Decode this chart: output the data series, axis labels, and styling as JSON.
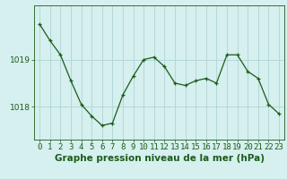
{
  "x": [
    0,
    1,
    2,
    3,
    4,
    5,
    6,
    7,
    8,
    9,
    10,
    11,
    12,
    13,
    14,
    15,
    16,
    17,
    18,
    19,
    20,
    21,
    22,
    23
  ],
  "y": [
    1019.75,
    1019.4,
    1019.1,
    1018.55,
    1018.05,
    1017.8,
    1017.6,
    1017.65,
    1018.25,
    1018.65,
    1019.0,
    1019.05,
    1018.85,
    1018.5,
    1018.45,
    1018.55,
    1018.6,
    1018.5,
    1019.1,
    1019.1,
    1018.75,
    1018.6,
    1018.05,
    1017.85
  ],
  "line_color": "#1a5c1a",
  "marker": "+",
  "bg_color": "#d6efef",
  "grid_color": "#b0d4d4",
  "axis_color": "#1a5c1a",
  "xlabel": "Graphe pression niveau de la mer (hPa)",
  "ytick_labels": [
    "1018",
    "1019"
  ],
  "ytick_vals": [
    1018,
    1019
  ],
  "ylim": [
    1017.3,
    1020.15
  ],
  "xlim": [
    -0.5,
    23.5
  ],
  "xlabel_fontsize": 7.5,
  "tick_fontsize": 6.5,
  "marker_size": 3,
  "linewidth": 0.9
}
